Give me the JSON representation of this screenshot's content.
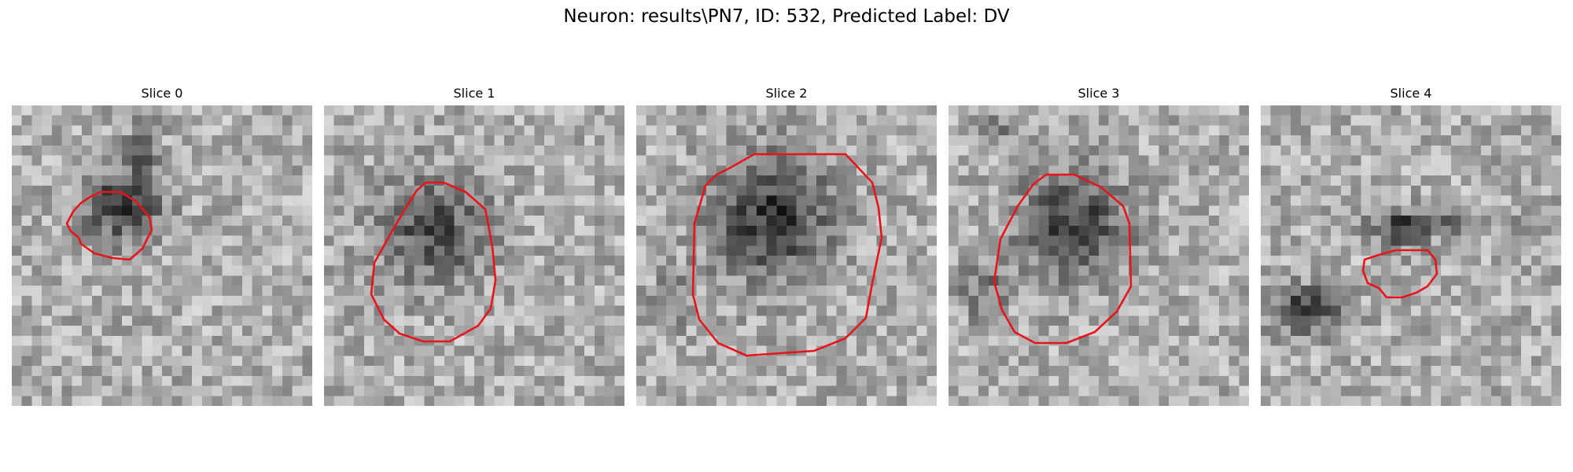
{
  "figure": {
    "title": "Neuron: results\\PN7, ID: 532, Predicted Label: DV"
  },
  "colors": {
    "contour": "#e8141c",
    "background": "#ffffff"
  },
  "slices": [
    {
      "label": "Slice 0"
    },
    {
      "label": "Slice 1"
    },
    {
      "label": "Slice 2"
    },
    {
      "label": "Slice 3"
    },
    {
      "label": "Slice 4"
    }
  ]
}
